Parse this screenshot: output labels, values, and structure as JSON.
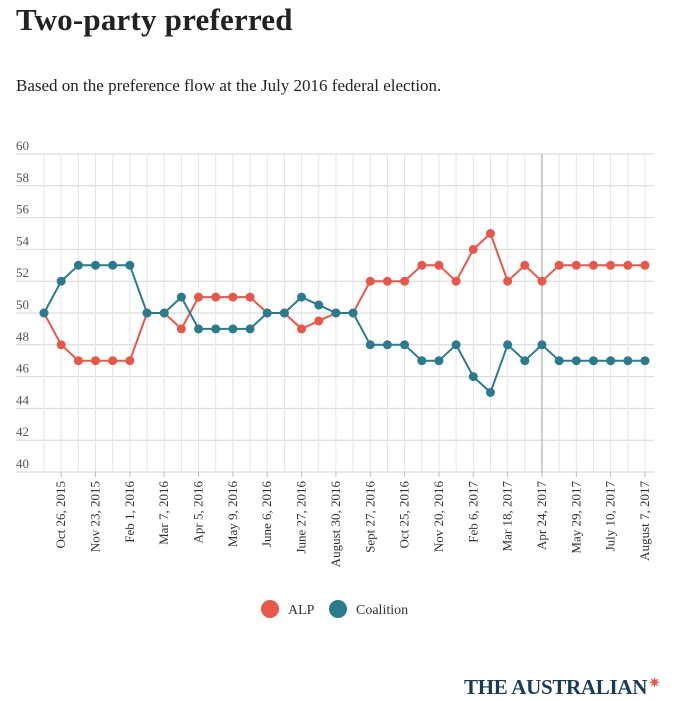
{
  "chart_data": {
    "type": "line",
    "title": "Two-party preferred",
    "subtitle": "Based on the preference flow at the July 2016 federal election.",
    "xlabel": "",
    "ylabel": "",
    "ylim": [
      40,
      60
    ],
    "yticks": [
      "40",
      "42",
      "44",
      "46",
      "48",
      "50",
      "52",
      "54",
      "56",
      "58",
      "60"
    ],
    "grid": true,
    "legend_position": "bottom-center",
    "categories": [
      "",
      "Oct 26, 2015",
      "",
      "Nov 23, 2015",
      "",
      "Feb 1, 2016",
      "",
      "Mar 7, 2016",
      "",
      "Apr 5, 2016",
      "",
      "May 9, 2016",
      "",
      "June 6, 2016",
      "",
      "June 27, 2016",
      "",
      "August 30, 2016",
      "",
      "Sept 27, 2016",
      "",
      "Oct 25, 2016",
      "",
      "Nov 20, 2016",
      "",
      "Feb 6, 2017",
      "",
      "Mar 18, 2017",
      "",
      "Apr 24, 2017",
      "",
      "May 29, 2017",
      "",
      "July 10, 2017",
      "",
      "August 7, 2017"
    ],
    "series": [
      {
        "name": "ALP",
        "color": "#e8584a",
        "values": [
          50,
          48,
          47,
          47,
          47,
          47,
          50,
          50,
          49,
          51,
          51,
          51,
          51,
          50,
          50,
          49,
          49.5,
          50,
          50,
          52,
          52,
          52,
          53,
          53,
          52,
          54,
          55,
          52,
          53,
          52,
          53,
          53,
          53,
          53,
          53,
          53
        ]
      },
      {
        "name": "Coalition",
        "color": "#2b7b8f",
        "values": [
          50,
          52,
          53,
          53,
          53,
          53,
          50,
          50,
          51,
          49,
          49,
          49,
          49,
          50,
          50,
          51,
          50.5,
          50,
          50,
          48,
          48,
          48,
          47,
          47,
          48,
          46,
          45,
          48,
          47,
          48,
          47,
          47,
          47,
          47,
          47,
          47
        ]
      }
    ]
  },
  "brand": {
    "name": "THE AUSTRALIAN",
    "mark": "✷"
  }
}
